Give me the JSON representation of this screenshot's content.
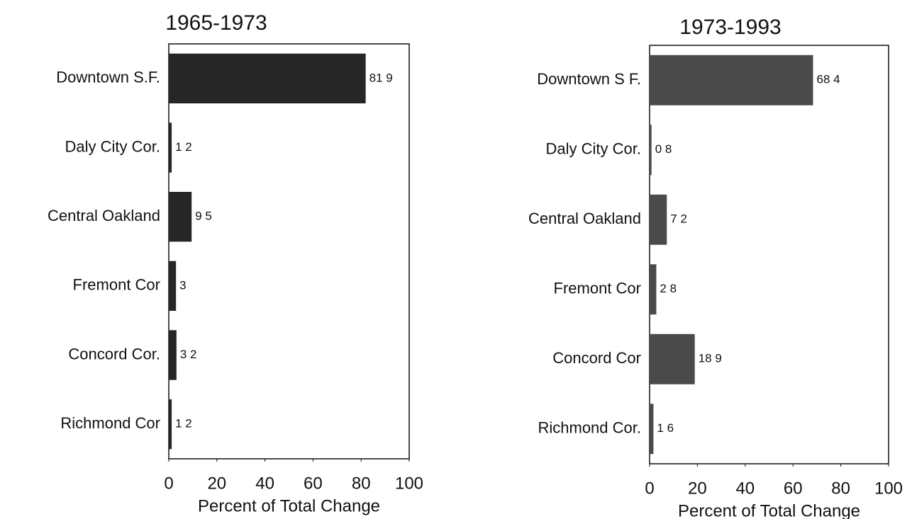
{
  "chart_data": [
    {
      "type": "bar",
      "orientation": "horizontal",
      "title": "1965-1973",
      "categories": [
        "Downtown S.F.",
        "Daly City Cor.",
        "Central Oakland",
        "Fremont Cor",
        "Concord Cor.",
        "Richmond Cor"
      ],
      "values": [
        81.9,
        1.2,
        9.5,
        3,
        3.2,
        1.2
      ],
      "value_labels": [
        "81 9",
        "1 2",
        "9 5",
        "3",
        "3 2",
        "1 2"
      ],
      "color": "#262626",
      "xlabel": "Percent of Total Change",
      "xlim": [
        0,
        100
      ],
      "xticks": [
        0,
        20,
        40,
        60,
        80,
        100
      ],
      "grid": false
    },
    {
      "type": "bar",
      "orientation": "horizontal",
      "title": "1973-1993",
      "categories": [
        "Downtown S F.",
        "Daly City Cor.",
        "Central Oakland",
        "Fremont Cor",
        "Concord Cor",
        "Richmond Cor."
      ],
      "values": [
        68.4,
        0.8,
        7.2,
        2.8,
        18.9,
        1.6
      ],
      "value_labels": [
        "68 4",
        "0 8",
        "7 2",
        "2 8",
        "18 9",
        "1 6"
      ],
      "color": "#4a4a4a",
      "xlabel": "Percent of Total Change",
      "xlim": [
        0,
        100
      ],
      "xticks": [
        0,
        20,
        40,
        60,
        80,
        100
      ],
      "grid": false
    }
  ]
}
